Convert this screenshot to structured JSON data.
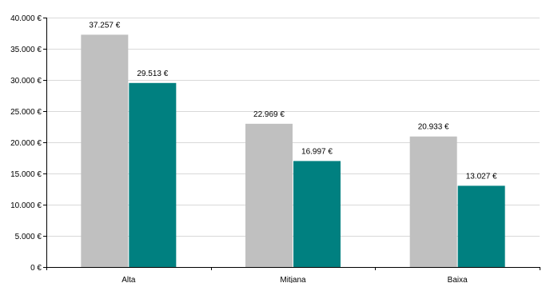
{
  "chart_data": {
    "type": "bar",
    "categories": [
      "Alta",
      "Mitjana",
      "Baixa"
    ],
    "series": [
      {
        "color": "#C0C0C0",
        "values": [
          37257,
          22969,
          20933
        ],
        "labels": [
          "37.257 €",
          "22.969 €",
          "20.933 €"
        ]
      },
      {
        "color": "#008080",
        "values": [
          29513,
          16997,
          13027
        ],
        "labels": [
          "29.513 €",
          "16.997 €",
          "13.027 €"
        ]
      }
    ],
    "ylim": [
      0,
      40000
    ],
    "yticks": [
      {
        "value": 0,
        "label": "0 €"
      },
      {
        "value": 5000,
        "label": "5.000 €"
      },
      {
        "value": 10000,
        "label": "10.000 €"
      },
      {
        "value": 15000,
        "label": "15.000 €"
      },
      {
        "value": 20000,
        "label": "20.000 €"
      },
      {
        "value": 25000,
        "label": "25.000 €"
      },
      {
        "value": 30000,
        "label": "30.000 €"
      },
      {
        "value": 35000,
        "label": "35.000 €"
      },
      {
        "value": 40000,
        "label": "40.000 €"
      }
    ],
    "grid": true,
    "gridline_color": "#D9D9D9",
    "axis_color": "#000000"
  }
}
